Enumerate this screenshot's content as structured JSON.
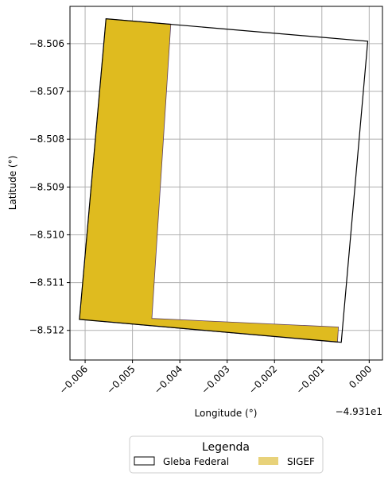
{
  "chart_data": {
    "type": "map",
    "xlabel": "Longitude (°)",
    "ylabel": "Latitude (°)",
    "x_offset_label": "−4.931e1",
    "xlim": [
      -0.00632,
      0.00028
    ],
    "ylim": [
      -8.51262,
      -8.50522
    ],
    "x_ticks": [
      {
        "value": -0.006,
        "label": "−0.006"
      },
      {
        "value": -0.005,
        "label": "−0.005"
      },
      {
        "value": -0.004,
        "label": "−0.004"
      },
      {
        "value": -0.003,
        "label": "−0.003"
      },
      {
        "value": -0.002,
        "label": "−0.002"
      },
      {
        "value": -0.001,
        "label": "−0.001"
      },
      {
        "value": 0.0,
        "label": "0.000"
      }
    ],
    "y_ticks": [
      {
        "value": -8.506,
        "label": "−8.506"
      },
      {
        "value": -8.507,
        "label": "−8.507"
      },
      {
        "value": -8.508,
        "label": "−8.508"
      },
      {
        "value": -8.509,
        "label": "−8.509"
      },
      {
        "value": -8.51,
        "label": "−8.510"
      },
      {
        "value": -8.511,
        "label": "−8.511"
      },
      {
        "value": -8.512,
        "label": "−8.512"
      }
    ],
    "grid": true,
    "polygons": {
      "gleba": {
        "name": "Gleba Federal",
        "fill": "none",
        "stroke": "#000000",
        "coords": [
          [
            -0.00556,
            -8.50548
          ],
          [
            -3e-05,
            -8.50595
          ],
          [
            -0.00059,
            -8.51225
          ],
          [
            -0.00612,
            -8.51177
          ]
        ]
      },
      "sigef": {
        "name": "SIGEF",
        "fill": "#DFBB1F",
        "stroke": "#5a3e66",
        "coords": [
          [
            -0.00556,
            -8.50548
          ],
          [
            -0.00419,
            -8.50559
          ],
          [
            -0.00459,
            -8.51175
          ],
          [
            -0.00065,
            -8.51193
          ],
          [
            -0.00067,
            -8.51225
          ],
          [
            -0.00612,
            -8.51177
          ]
        ]
      }
    },
    "legend": {
      "title": "Legenda",
      "placement": "bottom-center",
      "entries": [
        {
          "label": "Gleba Federal",
          "swatch": "outline",
          "color": "#000000"
        },
        {
          "label": "SIGEF",
          "swatch": "filled",
          "color": "#E8D27A"
        }
      ]
    }
  }
}
